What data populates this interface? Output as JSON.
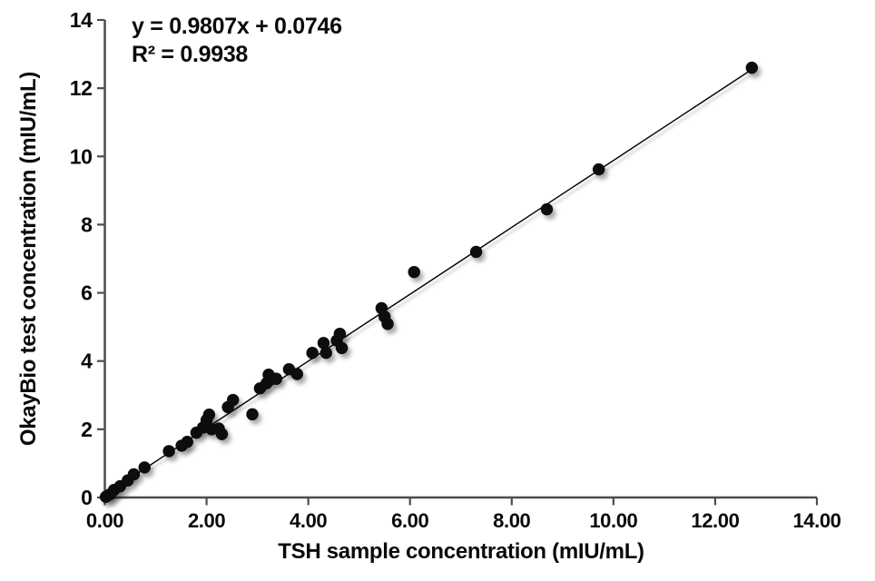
{
  "chart_data": {
    "type": "scatter",
    "title": "",
    "xlabel": "TSH sample concentration (mIU/mL)",
    "ylabel": "OkayBio test concentration (mIU/mL)",
    "xlim": [
      0,
      14
    ],
    "ylim": [
      0,
      14
    ],
    "grid": false,
    "x_ticks": {
      "values": [
        0,
        2,
        4,
        6,
        8,
        10,
        12,
        14
      ],
      "labels": [
        "0.00",
        "2.00",
        "4.00",
        "6.00",
        "8.00",
        "10.00",
        "12.00",
        "14.00"
      ]
    },
    "y_ticks": {
      "values": [
        0,
        2,
        4,
        6,
        8,
        10,
        12,
        14
      ],
      "labels": [
        "0",
        "2",
        "4",
        "6",
        "8",
        "10",
        "12",
        "14"
      ]
    },
    "annotation": {
      "equation": "y = 0.9807x + 0.0746",
      "r_squared": "R² = 0.9938"
    },
    "trendline": {
      "slope": 0.9807,
      "intercept": 0.0746,
      "x_start": 0.0,
      "x_end": 12.72
    },
    "points": [
      [
        0.02,
        0.02
      ],
      [
        0.1,
        0.09
      ],
      [
        0.18,
        0.22
      ],
      [
        0.3,
        0.33
      ],
      [
        0.45,
        0.5
      ],
      [
        0.57,
        0.68
      ],
      [
        0.78,
        0.88
      ],
      [
        1.26,
        1.36
      ],
      [
        1.51,
        1.52
      ],
      [
        1.62,
        1.63
      ],
      [
        1.8,
        1.9
      ],
      [
        1.93,
        2.05
      ],
      [
        2.0,
        2.27
      ],
      [
        2.05,
        2.43
      ],
      [
        2.1,
        2.0
      ],
      [
        2.24,
        2.02
      ],
      [
        2.3,
        1.86
      ],
      [
        2.42,
        2.65
      ],
      [
        2.52,
        2.86
      ],
      [
        2.9,
        2.44
      ],
      [
        3.05,
        3.2
      ],
      [
        3.18,
        3.35
      ],
      [
        3.22,
        3.6
      ],
      [
        3.37,
        3.48
      ],
      [
        3.62,
        3.76
      ],
      [
        3.78,
        3.62
      ],
      [
        4.08,
        4.24
      ],
      [
        4.3,
        4.53
      ],
      [
        4.35,
        4.24
      ],
      [
        4.56,
        4.6
      ],
      [
        4.62,
        4.8
      ],
      [
        4.66,
        4.38
      ],
      [
        5.44,
        5.55
      ],
      [
        5.5,
        5.3
      ],
      [
        5.56,
        5.09
      ],
      [
        6.08,
        6.61
      ],
      [
        7.3,
        7.2
      ],
      [
        8.69,
        8.45
      ],
      [
        9.71,
        9.62
      ],
      [
        12.72,
        12.6
      ]
    ],
    "colors": {
      "marker": "#0a0a0a",
      "trendline": "#000000",
      "axis": "#4d4d4d",
      "text": "#0a0a0a",
      "background": "#ffffff"
    }
  }
}
